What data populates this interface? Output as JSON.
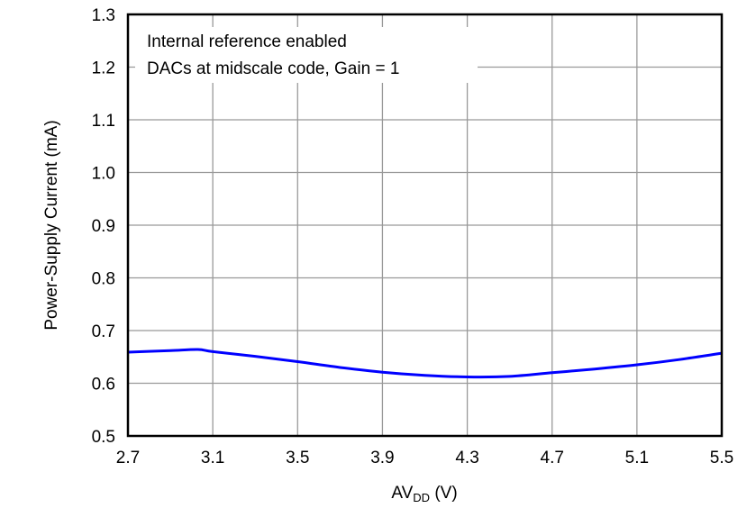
{
  "chart_data": {
    "type": "line",
    "title": "",
    "xlabel": "AV",
    "xlabel_sub": "DD",
    "xlabel_unit": " (V)",
    "ylabel": "Power-Supply Current (mA)",
    "xlim": [
      2.7,
      5.5
    ],
    "ylim": [
      0.5,
      1.3
    ],
    "xticks": [
      "2.7",
      "3.1",
      "3.5",
      "3.9",
      "4.3",
      "4.7",
      "5.1",
      "5.5"
    ],
    "yticks": [
      "0.5",
      "0.6",
      "0.7",
      "0.8",
      "0.9",
      "1.0",
      "1.1",
      "1.2",
      "1.3"
    ],
    "grid": true,
    "annotations": [
      "Internal reference enabled",
      "DACs at midscale code, Gain = 1"
    ],
    "series": [
      {
        "color": "#0000ff",
        "x": [
          2.7,
          2.9,
          3.03,
          3.1,
          3.3,
          3.5,
          3.7,
          3.9,
          4.1,
          4.3,
          4.5,
          4.7,
          4.9,
          5.1,
          5.3,
          5.5
        ],
        "y": [
          0.659,
          0.662,
          0.664,
          0.66,
          0.651,
          0.641,
          0.63,
          0.621,
          0.615,
          0.612,
          0.613,
          0.62,
          0.627,
          0.635,
          0.645,
          0.657
        ]
      }
    ]
  }
}
